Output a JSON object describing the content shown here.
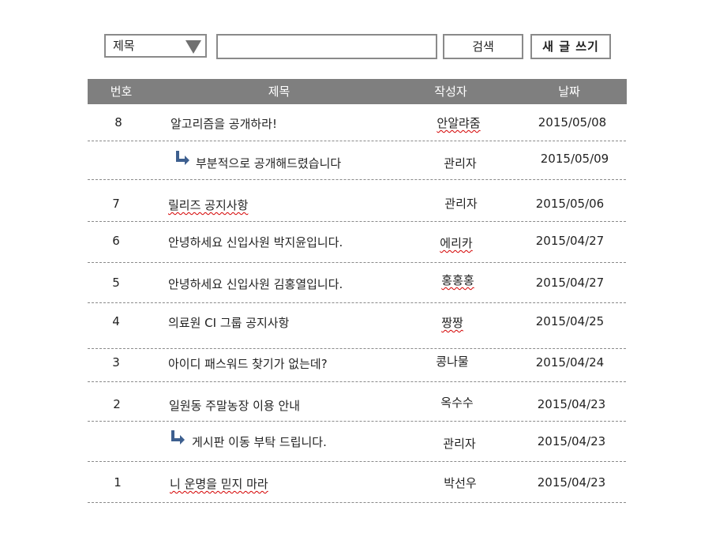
{
  "search": {
    "field_selected": "제목",
    "query_value": "",
    "search_button": "검색",
    "write_button": "새 글 쓰기"
  },
  "table": {
    "headers": {
      "no": "번호",
      "title": "제목",
      "author": "작성자",
      "date": "날짜"
    },
    "rows": [
      {
        "no": "8",
        "title": "알고리즘을 공개하라!",
        "author": "안알랴줌",
        "date": "2015/05/08",
        "reply": false,
        "author_misspelled": true
      },
      {
        "no": "",
        "title": "부분적으로 공개해드렸습니다",
        "author": "관리자",
        "date": "2015/05/09",
        "reply": true
      },
      {
        "no": "7",
        "title": "릴리즈 공지사항",
        "author": "관리자",
        "date": "2015/05/06",
        "reply": false
      },
      {
        "no": "6",
        "title": "안녕하세요 신입사원 박지윤입니다.",
        "author": "에리카",
        "date": "2015/04/27",
        "reply": false,
        "author_misspelled": true
      },
      {
        "no": "5",
        "title": "안녕하세요 신입사원 김홍열입니다.",
        "author": "홍홍홍",
        "date": "2015/04/27",
        "reply": false,
        "author_misspelled": true
      },
      {
        "no": "4",
        "title": "의료원 CI 그룹 공지사항",
        "author": "짱짱",
        "date": "2015/04/25",
        "reply": false,
        "author_misspelled": true
      },
      {
        "no": "3",
        "title": "아이디 패스워드 찾기가 없는데?",
        "author": "콩나물",
        "date": "2015/04/24",
        "reply": false
      },
      {
        "no": "2",
        "title": "일원동 주말농장 이용 안내",
        "author": "옥수수",
        "date": "2015/04/23",
        "reply": false
      },
      {
        "no": "",
        "title": "게시판 이동 부탁 드립니다.",
        "author": "관리자",
        "date": "2015/04/23",
        "reply": true
      },
      {
        "no": "1",
        "title": "니 운명을 믿지 마라",
        "author": "박선우",
        "date": "2015/04/23",
        "reply": false
      }
    ]
  },
  "colors": {
    "header_bg": "#7f7f7f",
    "reply_icon": "#3d5f8f",
    "border": "#8a8a8a",
    "spellcheck": "#d40000"
  },
  "icons": {
    "select_caret": "triangle-down-icon",
    "reply": "reply-arrow-icon"
  }
}
